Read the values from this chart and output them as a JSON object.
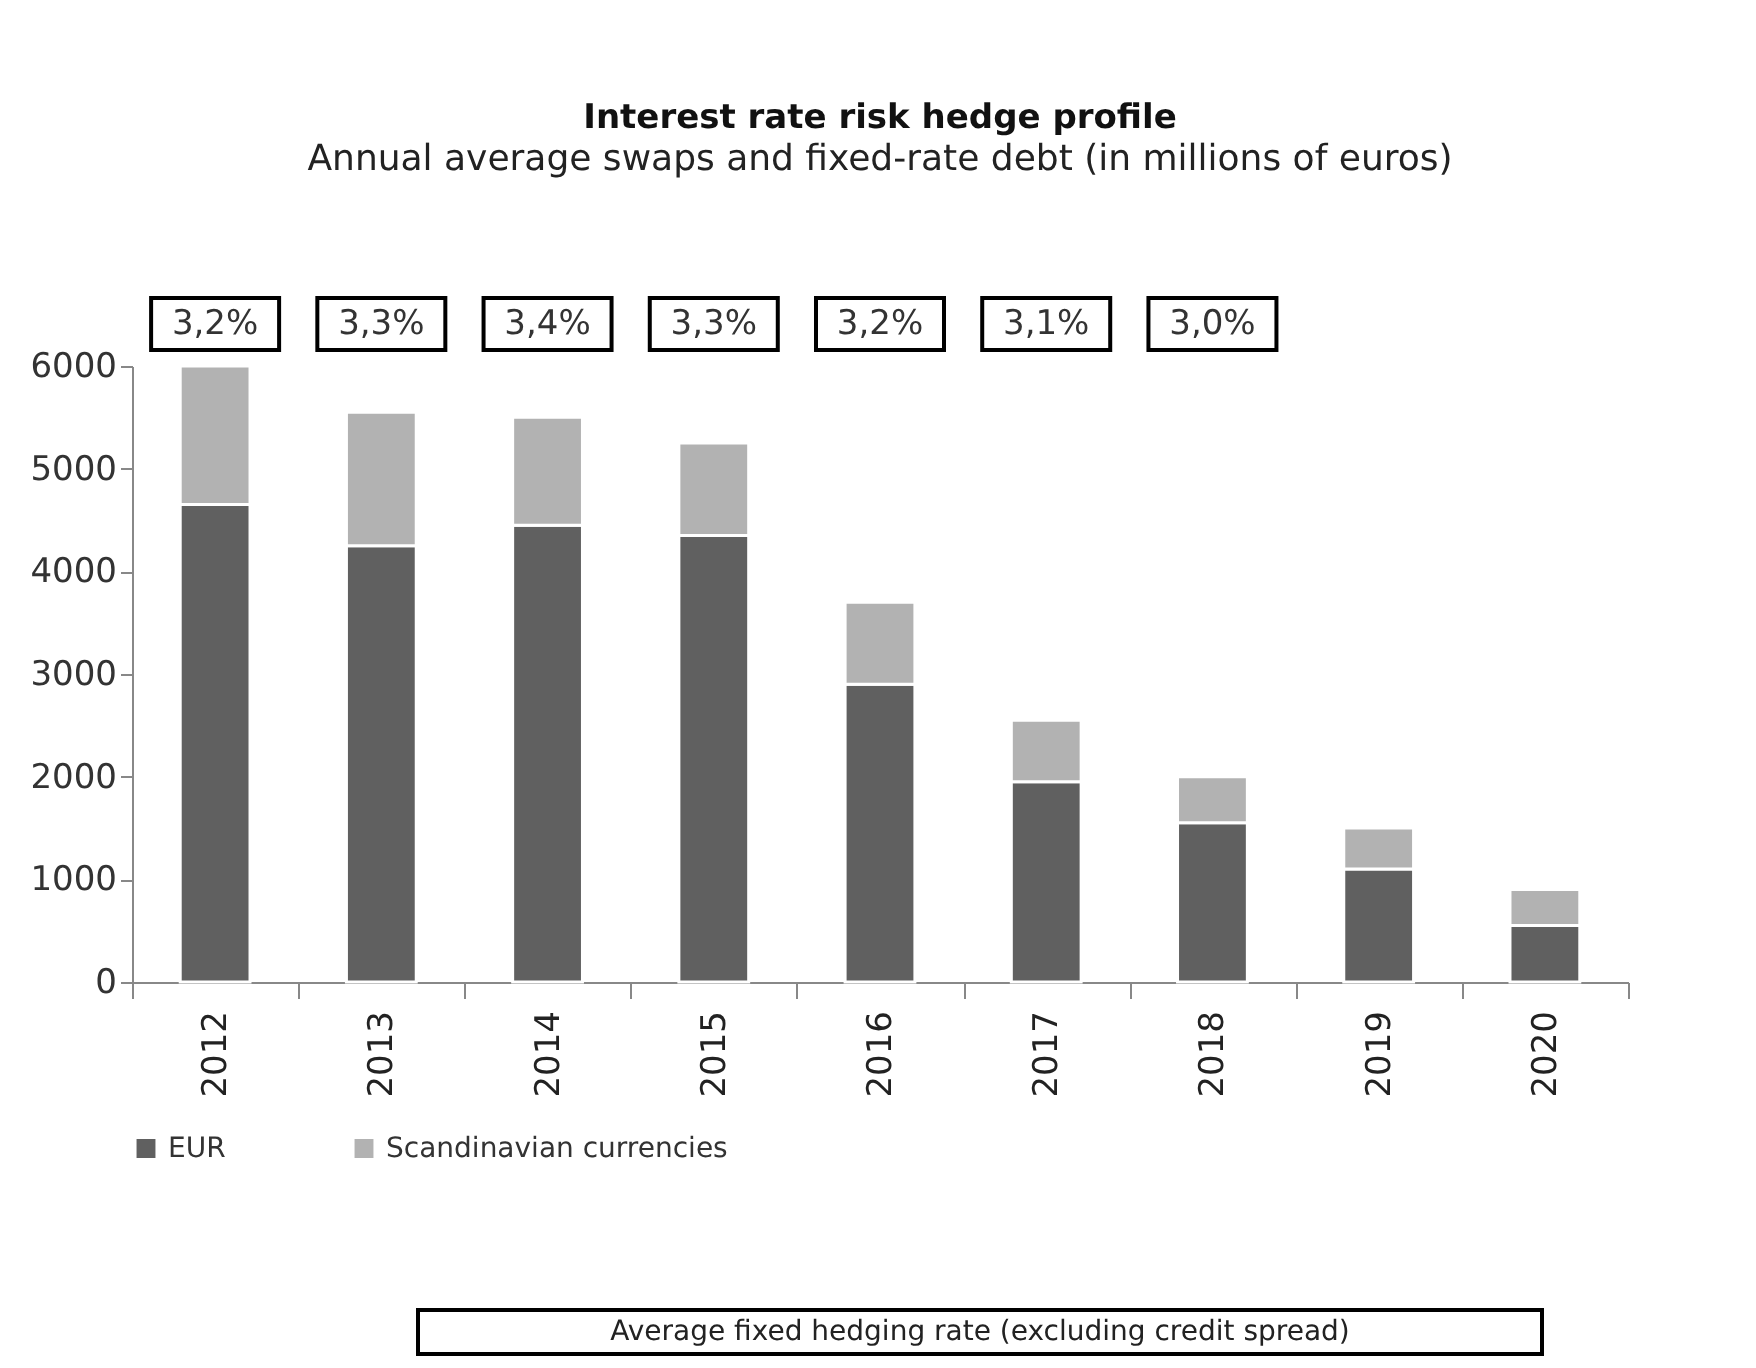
{
  "chart_data": {
    "type": "bar",
    "title": "Interest rate risk hedge profile",
    "subtitle": "Annual average swaps and fixed-rate debt\n(in millions of euros)",
    "categories": [
      "2012",
      "2013",
      "2014",
      "2015",
      "2016",
      "2017",
      "2018",
      "2019",
      "2020"
    ],
    "series": [
      {
        "name": "EUR",
        "color": "#606060",
        "values": [
          4650,
          4250,
          4450,
          4350,
          2900,
          1950,
          1550,
          1100,
          550
        ]
      },
      {
        "name": "Scandinavian currencies",
        "color": "#b2b2b2",
        "values": [
          1350,
          1300,
          1050,
          900,
          800,
          600,
          450,
          400,
          350
        ]
      }
    ],
    "stacked": true,
    "ylim": [
      0,
      6000
    ],
    "yticks": [
      0,
      1000,
      2000,
      3000,
      4000,
      5000,
      6000
    ],
    "grid": false,
    "legend": "bottom",
    "annotations": [
      "3,2%",
      "3,3%",
      "3,4%",
      "3,3%",
      "3,2%",
      "3,1%",
      "3,0%",
      "Average fixed hedging rate (excluding credit spread)"
    ]
  }
}
